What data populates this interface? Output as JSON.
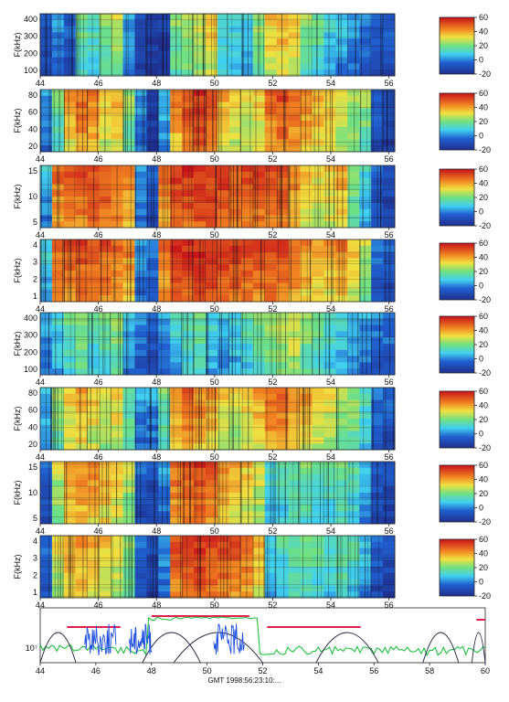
{
  "chart_data": {
    "type": "heatmap",
    "colors": {
      "low": "#1f2f8f",
      "mid": "#3fc8e0",
      "high": "#c8101a",
      "warm": "#f0e040",
      "line_red": "#e0204a",
      "line_green": "#20c040",
      "line_blue": "#2050e0",
      "line_dark": "#202040"
    },
    "x_ticks": [
      "44",
      "46",
      "48",
      "50",
      "52",
      "54",
      "56"
    ],
    "bottom_x_ticks": [
      "44",
      "46",
      "48",
      "50",
      "52",
      "54",
      "56",
      "58",
      "60"
    ],
    "bottom_xlabel": "GMT 1998:56:23:10:...",
    "bottom_y_tick": "10⁷",
    "colorbar_ticks_a": [
      "60",
      "40",
      "20",
      "0",
      "-20"
    ],
    "colorbar_ticks_b": [
      "60",
      "40",
      "20",
      "0",
      "-20"
    ],
    "panels": [
      {
        "ylabel": "F(kHz)",
        "yticks": [
          "400",
          "300",
          "200",
          "100"
        ],
        "ylim": [
          100,
          400
        ],
        "profile": [
          0.2,
          0.3,
          0.2,
          0.5,
          0.45,
          0.55,
          0.6,
          0.3,
          0.15,
          0.1,
          0.1,
          0.55,
          0.6,
          0.65,
          0.7,
          0.45,
          0.4,
          0.35,
          0.55,
          0.7,
          0.75,
          0.7,
          0.55,
          0.5,
          0.4,
          0.35,
          0.3,
          0.25,
          0.2,
          0.2
        ]
      },
      {
        "ylabel": "F(kHz)",
        "yticks": [
          "80",
          "60",
          "40",
          "20"
        ],
        "ylim": [
          20,
          80
        ],
        "profile": [
          0.3,
          0.5,
          0.75,
          0.85,
          0.8,
          0.7,
          0.75,
          0.55,
          0.3,
          0.1,
          0.35,
          0.8,
          0.9,
          0.95,
          0.9,
          0.75,
          0.7,
          0.65,
          0.7,
          0.85,
          0.9,
          0.85,
          0.8,
          0.75,
          0.7,
          0.65,
          0.6,
          0.55,
          0.2,
          0.15
        ]
      },
      {
        "ylabel": "F(kHz)",
        "yticks": [
          "15",
          "10",
          "5"
        ],
        "ylim": [
          4,
          17
        ],
        "profile": [
          0.35,
          0.85,
          0.88,
          0.9,
          0.92,
          0.9,
          0.88,
          0.8,
          0.3,
          0.2,
          0.85,
          0.95,
          0.95,
          0.97,
          0.95,
          0.93,
          0.9,
          0.9,
          0.9,
          0.92,
          0.9,
          0.8,
          0.7,
          0.68,
          0.7,
          0.75,
          0.55,
          0.4,
          0.2,
          0.15
        ]
      },
      {
        "ylabel": "F(kHz)",
        "yticks": [
          "4",
          "3",
          "2",
          "1"
        ],
        "ylim": [
          1,
          4.2
        ],
        "profile": [
          0.4,
          0.85,
          0.88,
          0.9,
          0.9,
          0.88,
          0.85,
          0.8,
          0.3,
          0.25,
          0.85,
          0.95,
          0.96,
          0.97,
          0.96,
          0.95,
          0.93,
          0.92,
          0.9,
          0.92,
          0.9,
          0.85,
          0.78,
          0.75,
          0.75,
          0.8,
          0.7,
          0.6,
          0.25,
          0.2
        ]
      },
      {
        "ylabel": "F(kHz)",
        "yticks": [
          "400",
          "300",
          "200",
          "100"
        ],
        "ylim": [
          100,
          420
        ],
        "profile": [
          0.3,
          0.4,
          0.5,
          0.55,
          0.45,
          0.5,
          0.55,
          0.35,
          0.25,
          0.2,
          0.3,
          0.4,
          0.45,
          0.5,
          0.4,
          0.35,
          0.4,
          0.45,
          0.5,
          0.55,
          0.6,
          0.65,
          0.55,
          0.5,
          0.45,
          0.4,
          0.35,
          0.3,
          0.25,
          0.25
        ]
      },
      {
        "ylabel": "F(kHz)",
        "yticks": [
          "80",
          "60",
          "40",
          "20"
        ],
        "ylim": [
          20,
          85
        ],
        "profile": [
          0.35,
          0.55,
          0.7,
          0.75,
          0.7,
          0.65,
          0.7,
          0.5,
          0.3,
          0.3,
          0.5,
          0.8,
          0.85,
          0.8,
          0.75,
          0.7,
          0.65,
          0.7,
          0.75,
          0.85,
          0.85,
          0.8,
          0.75,
          0.7,
          0.65,
          0.6,
          0.55,
          0.45,
          0.25,
          0.2
        ]
      },
      {
        "ylabel": "F(kHz)",
        "yticks": [
          "15",
          "10",
          "5"
        ],
        "ylim": [
          4,
          16
        ],
        "profile": [
          0.2,
          0.6,
          0.75,
          0.8,
          0.78,
          0.75,
          0.7,
          0.6,
          0.2,
          0.15,
          0.3,
          0.85,
          0.9,
          0.92,
          0.88,
          0.8,
          0.75,
          0.7,
          0.65,
          0.4,
          0.45,
          0.5,
          0.5,
          0.48,
          0.45,
          0.5,
          0.45,
          0.35,
          0.2,
          0.15
        ]
      },
      {
        "ylabel": "F(kHz)",
        "yticks": [
          "4",
          "3",
          "2",
          "1"
        ],
        "ylim": [
          1,
          4.2
        ],
        "profile": [
          0.25,
          0.65,
          0.75,
          0.78,
          0.75,
          0.7,
          0.65,
          0.55,
          0.2,
          0.15,
          0.3,
          0.9,
          0.95,
          0.95,
          0.93,
          0.9,
          0.88,
          0.85,
          0.75,
          0.4,
          0.45,
          0.5,
          0.5,
          0.48,
          0.45,
          0.5,
          0.45,
          0.35,
          0.2,
          0.15
        ]
      }
    ]
  }
}
